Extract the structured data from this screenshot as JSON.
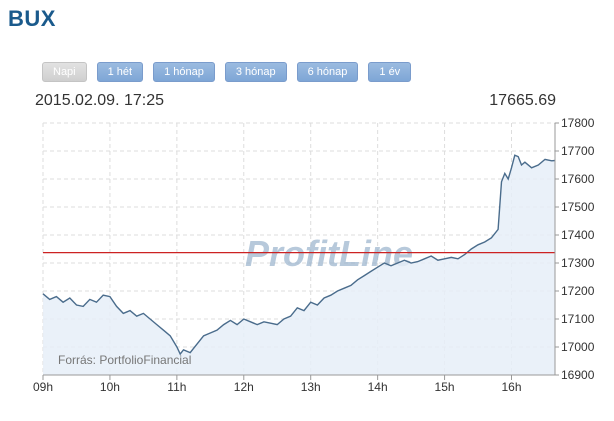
{
  "title": "BUX",
  "tabs": [
    {
      "label": "Napi",
      "active": true
    },
    {
      "label": "1 hét",
      "active": false
    },
    {
      "label": "1 hónap",
      "active": false
    },
    {
      "label": "3 hónap",
      "active": false
    },
    {
      "label": "6 hónap",
      "active": false
    },
    {
      "label": "1 év",
      "active": false
    }
  ],
  "info": {
    "datetime": "2015.02.09. 17:25",
    "last_value": "17665.69"
  },
  "watermark": "ProfitLine",
  "source": "Forrás: PortfolioFinancial",
  "colors": {
    "line": "#4a6c8c",
    "fill": "#e6eff8",
    "reference": "#cc2222",
    "grid": "#dddddd",
    "title": "#1a5a8c"
  },
  "chart_data": {
    "type": "area",
    "title": "",
    "xlabel": "",
    "ylabel": "",
    "x_ticks": [
      "09h",
      "10h",
      "11h",
      "12h",
      "13h",
      "14h",
      "15h",
      "16h"
    ],
    "y_ticks": [
      16900,
      17000,
      17100,
      17200,
      17300,
      17400,
      17500,
      17600,
      17700,
      17800
    ],
    "xlim": [
      9.0,
      16.65
    ],
    "ylim": [
      16900,
      17800
    ],
    "y_axis_side": "right",
    "grid": true,
    "reference_line": 17337,
    "series": [
      {
        "x": [
          9.0,
          9.1,
          9.2,
          9.3,
          9.4,
          9.5,
          9.6,
          9.7,
          9.8,
          9.9,
          10.0,
          10.1,
          10.2,
          10.3,
          10.4,
          10.5,
          10.6,
          10.7,
          10.8,
          10.9,
          11.0,
          11.05,
          11.1,
          11.2,
          11.3,
          11.4,
          11.5,
          11.6,
          11.7,
          11.8,
          11.9,
          12.0,
          12.1,
          12.2,
          12.3,
          12.4,
          12.5,
          12.6,
          12.7,
          12.8,
          12.9,
          13.0,
          13.1,
          13.2,
          13.3,
          13.4,
          13.5,
          13.6,
          13.7,
          13.8,
          13.9,
          14.0,
          14.1,
          14.2,
          14.3,
          14.4,
          14.5,
          14.6,
          14.7,
          14.8,
          14.9,
          15.0,
          15.1,
          15.2,
          15.3,
          15.4,
          15.5,
          15.6,
          15.7,
          15.8,
          15.85,
          15.9,
          15.95,
          16.0,
          16.05,
          16.1,
          16.15,
          16.2,
          16.3,
          16.4,
          16.5,
          16.6,
          16.65
        ],
        "values": [
          17190,
          17170,
          17180,
          17160,
          17175,
          17150,
          17145,
          17170,
          17160,
          17185,
          17180,
          17145,
          17120,
          17130,
          17110,
          17120,
          17100,
          17080,
          17060,
          17040,
          17000,
          16975,
          16990,
          16980,
          17010,
          17040,
          17050,
          17060,
          17080,
          17095,
          17080,
          17100,
          17090,
          17080,
          17090,
          17085,
          17080,
          17100,
          17110,
          17140,
          17130,
          17160,
          17150,
          17175,
          17185,
          17200,
          17210,
          17220,
          17240,
          17255,
          17270,
          17285,
          17300,
          17290,
          17300,
          17310,
          17300,
          17305,
          17315,
          17325,
          17310,
          17315,
          17320,
          17315,
          17330,
          17350,
          17365,
          17375,
          17390,
          17420,
          17590,
          17620,
          17600,
          17640,
          17685,
          17680,
          17650,
          17660,
          17640,
          17650,
          17670,
          17665,
          17666
        ]
      }
    ]
  }
}
